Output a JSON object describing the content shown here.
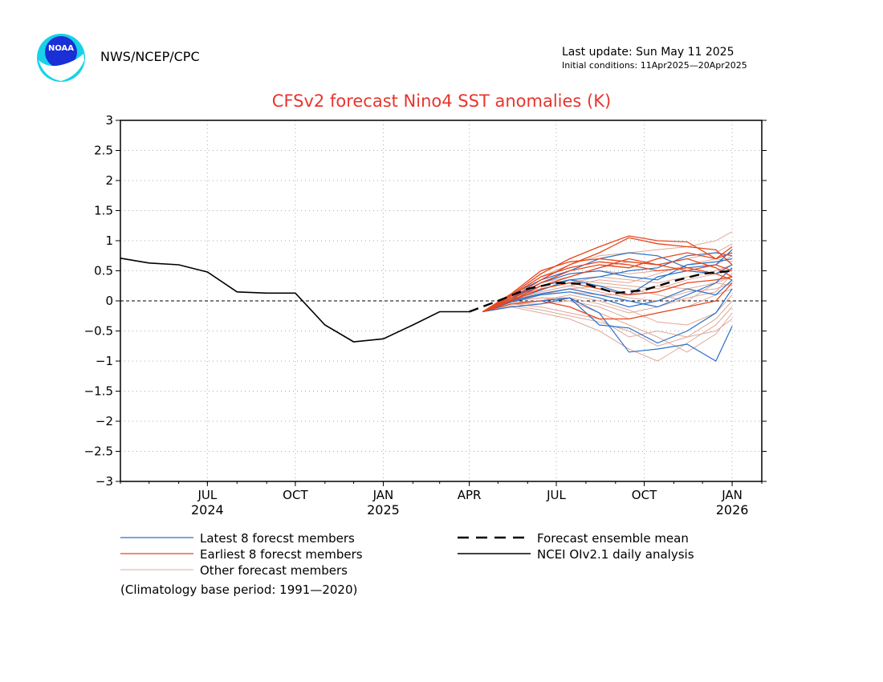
{
  "header": {
    "agency": "NWS/NCEP/CPC",
    "last_update": "Last update: Sun May 11 2025",
    "initial_conditions": "Initial conditions: 11Apr2025—20Apr2025",
    "logo_text": "NOAA"
  },
  "colors": {
    "latest": "#2a6fc9",
    "earliest": "#e8461c",
    "other": "#dfa898",
    "mean": "#000000",
    "analysis": "#000000",
    "title": "#e8352e"
  },
  "chart_data": {
    "type": "line",
    "title": "CFSv2 forecast Nino4 SST anomalies (K)",
    "xlabel": "",
    "ylabel": "",
    "ylim": [
      -3,
      3
    ],
    "yticks": [
      -3,
      -2.5,
      -2,
      -1.5,
      -1,
      -0.5,
      0,
      0.5,
      1,
      1.5,
      2,
      2.5,
      3
    ],
    "ytick_labels": [
      "−3",
      "−2.5",
      "−2",
      "−1.5",
      "−1",
      "−0.5",
      "0",
      "0.5",
      "1",
      "1.5",
      "2",
      "2.5",
      "3"
    ],
    "xlim": [
      "2024-04-01",
      "2026-02-01"
    ],
    "xticks": [
      {
        "date": "2024-07-01",
        "month": "JUL",
        "year": "2024"
      },
      {
        "date": "2024-10-01",
        "month": "OCT",
        "year": ""
      },
      {
        "date": "2025-01-01",
        "month": "JAN",
        "year": "2025"
      },
      {
        "date": "2025-04-01",
        "month": "APR",
        "year": ""
      },
      {
        "date": "2025-07-01",
        "month": "JUL",
        "year": ""
      },
      {
        "date": "2025-10-01",
        "month": "OCT",
        "year": ""
      },
      {
        "date": "2026-01-01",
        "month": "JAN",
        "year": "2026"
      }
    ],
    "grid": true,
    "zero_line": true,
    "legend_placement": "bottom",
    "forecast_dates": [
      "2025-04-15",
      "2025-05-15",
      "2025-06-15",
      "2025-07-15",
      "2025-08-15",
      "2025-09-15",
      "2025-10-15",
      "2025-11-15",
      "2025-12-15",
      "2026-01-01"
    ],
    "series": [
      {
        "name": "NCEI OIv2.1 daily analysis",
        "style": "analysis",
        "x": [
          "2024-04-01",
          "2024-05-01",
          "2024-06-01",
          "2024-07-01",
          "2024-08-01",
          "2024-09-01",
          "2024-10-01",
          "2024-11-01",
          "2024-12-01",
          "2025-01-01",
          "2025-02-01",
          "2025-03-01",
          "2025-04-01"
        ],
        "values": [
          0.71,
          0.63,
          0.6,
          0.48,
          0.15,
          0.13,
          0.13,
          -0.4,
          -0.68,
          -0.63,
          -0.4,
          -0.18,
          -0.18
        ]
      },
      {
        "name": "Forecast ensemble mean",
        "style": "mean",
        "x": [
          "2025-04-01",
          "2025-05-01",
          "2025-06-01",
          "2025-07-01",
          "2025-08-01",
          "2025-09-01",
          "2025-10-01",
          "2025-11-01",
          "2025-12-01",
          "2026-01-01"
        ],
        "values": [
          -0.18,
          0.0,
          0.2,
          0.3,
          0.28,
          0.13,
          0.18,
          0.33,
          0.45,
          0.5
        ]
      },
      {
        "name": "Latest 8 forecst members",
        "style": "latest",
        "values": [
          -0.18,
          0.02,
          0.18,
          0.35,
          0.4,
          0.5,
          0.55,
          0.75,
          0.8,
          0.75
        ]
      },
      {
        "name": "",
        "style": "latest",
        "values": [
          -0.18,
          0.0,
          0.12,
          0.2,
          0.1,
          0.0,
          -0.1,
          0.1,
          0.3,
          0.55
        ]
      },
      {
        "name": "",
        "style": "latest",
        "values": [
          -0.18,
          -0.05,
          0.0,
          0.05,
          -0.2,
          -0.85,
          -0.8,
          -0.72,
          -1.0,
          -0.42
        ]
      },
      {
        "name": "",
        "style": "latest",
        "values": [
          -0.18,
          0.05,
          0.3,
          0.45,
          0.5,
          0.4,
          0.35,
          0.6,
          0.65,
          0.7
        ]
      },
      {
        "name": "",
        "style": "latest",
        "values": [
          -0.18,
          -0.1,
          -0.05,
          0.05,
          -0.4,
          -0.45,
          -0.7,
          -0.5,
          -0.2,
          0.2
        ]
      },
      {
        "name": "",
        "style": "latest",
        "values": [
          -0.18,
          0.05,
          0.25,
          0.35,
          0.25,
          0.1,
          0.4,
          0.5,
          0.45,
          0.6
        ]
      },
      {
        "name": "",
        "style": "latest",
        "values": [
          -0.18,
          0.1,
          0.35,
          0.5,
          0.7,
          0.8,
          0.75,
          0.55,
          0.6,
          0.85
        ]
      },
      {
        "name": "",
        "style": "latest",
        "values": [
          -0.18,
          -0.02,
          0.1,
          0.15,
          0.05,
          -0.1,
          0.0,
          0.2,
          0.1,
          0.35
        ]
      },
      {
        "name": "Earliest 8 forecst members",
        "style": "earliest",
        "values": [
          -0.18,
          0.1,
          0.45,
          0.7,
          0.9,
          1.08,
          1.0,
          0.98,
          0.7,
          0.9
        ]
      },
      {
        "name": "",
        "style": "earliest",
        "values": [
          -0.18,
          0.05,
          0.35,
          0.6,
          0.8,
          1.05,
          0.95,
          0.9,
          0.85,
          0.6
        ]
      },
      {
        "name": "",
        "style": "earliest",
        "values": [
          -0.18,
          0.0,
          0.25,
          0.4,
          0.55,
          0.7,
          0.6,
          0.7,
          0.55,
          0.4
        ]
      },
      {
        "name": "",
        "style": "earliest",
        "values": [
          -0.18,
          -0.05,
          0.0,
          -0.1,
          -0.3,
          -0.3,
          -0.2,
          -0.1,
          0.0,
          0.3
        ]
      },
      {
        "name": "",
        "style": "earliest",
        "values": [
          -0.18,
          0.08,
          0.4,
          0.55,
          0.65,
          0.6,
          0.5,
          0.55,
          0.45,
          0.35
        ]
      },
      {
        "name": "",
        "style": "earliest",
        "values": [
          -0.18,
          0.12,
          0.5,
          0.65,
          0.7,
          0.65,
          0.6,
          0.5,
          0.6,
          0.5
        ]
      },
      {
        "name": "",
        "style": "earliest",
        "values": [
          -0.18,
          0.0,
          0.2,
          0.3,
          0.2,
          0.1,
          0.15,
          0.3,
          0.35,
          0.4
        ]
      },
      {
        "name": "",
        "style": "earliest",
        "values": [
          -0.18,
          0.02,
          0.3,
          0.5,
          0.6,
          0.55,
          0.7,
          0.8,
          0.7,
          0.8
        ]
      },
      {
        "name": "Other forecast members",
        "style": "other",
        "values": [
          -0.18,
          -0.1,
          -0.2,
          -0.3,
          -0.5,
          -0.8,
          -1.0,
          -0.7,
          -0.4,
          -0.1
        ]
      },
      {
        "name": "",
        "style": "other",
        "values": [
          -0.18,
          -0.05,
          -0.1,
          -0.2,
          -0.3,
          -0.6,
          -0.5,
          -0.6,
          -0.3,
          0.0
        ]
      },
      {
        "name": "",
        "style": "other",
        "values": [
          -0.18,
          0.0,
          0.05,
          0.0,
          -0.1,
          -0.3,
          -0.2,
          -0.1,
          0.1,
          0.2
        ]
      },
      {
        "name": "",
        "style": "other",
        "values": [
          -0.18,
          0.02,
          0.1,
          0.2,
          0.25,
          0.2,
          0.1,
          0.0,
          0.3,
          0.4
        ]
      },
      {
        "name": "",
        "style": "other",
        "values": [
          -0.18,
          0.05,
          0.2,
          0.3,
          0.4,
          0.35,
          0.3,
          0.4,
          0.5,
          0.6
        ]
      },
      {
        "name": "",
        "style": "other",
        "values": [
          -0.18,
          0.08,
          0.3,
          0.45,
          0.5,
          0.45,
          0.5,
          0.55,
          0.6,
          0.75
        ]
      },
      {
        "name": "",
        "style": "other",
        "values": [
          -0.18,
          0.1,
          0.4,
          0.6,
          0.75,
          0.8,
          0.85,
          0.9,
          1.0,
          1.15
        ]
      },
      {
        "name": "",
        "style": "other",
        "values": [
          -0.18,
          -0.08,
          -0.15,
          -0.25,
          -0.35,
          -0.5,
          -0.75,
          -0.6,
          -0.5,
          -0.3
        ]
      },
      {
        "name": "",
        "style": "other",
        "values": [
          -0.18,
          0.0,
          0.15,
          0.25,
          0.15,
          0.05,
          0.0,
          0.15,
          0.2,
          0.3
        ]
      },
      {
        "name": "",
        "style": "other",
        "values": [
          -0.18,
          -0.02,
          0.0,
          0.1,
          0.0,
          -0.15,
          -0.35,
          -0.4,
          -0.2,
          0.1
        ]
      },
      {
        "name": "",
        "style": "other",
        "values": [
          -0.18,
          0.04,
          0.25,
          0.35,
          0.3,
          0.25,
          0.2,
          0.35,
          0.45,
          0.5
        ]
      },
      {
        "name": "",
        "style": "other",
        "values": [
          -0.18,
          0.06,
          0.3,
          0.4,
          0.55,
          0.65,
          0.6,
          0.7,
          0.8,
          0.95
        ]
      },
      {
        "name": "",
        "style": "other",
        "values": [
          -0.18,
          -0.05,
          -0.05,
          0.0,
          -0.2,
          -0.4,
          -0.6,
          -0.85,
          -0.55,
          -0.2
        ]
      },
      {
        "name": "",
        "style": "other",
        "values": [
          -0.18,
          0.02,
          0.1,
          0.15,
          0.1,
          0.1,
          0.25,
          0.2,
          0.3,
          0.25
        ]
      },
      {
        "name": "",
        "style": "other",
        "values": [
          -0.18,
          0.0,
          0.05,
          0.05,
          -0.05,
          -0.2,
          -0.1,
          0.05,
          0.15,
          0.45
        ]
      },
      {
        "name": "",
        "style": "other",
        "values": [
          -0.18,
          0.03,
          0.15,
          0.25,
          0.35,
          0.3,
          0.45,
          0.6,
          0.7,
          0.65
        ]
      }
    ]
  },
  "legend": {
    "latest": "Latest 8 forecst members",
    "earliest": "Earliest 8 forecst members",
    "other": "Other forecast members",
    "mean": "Forecast ensemble mean",
    "analysis": "NCEI OIv2.1 daily analysis"
  },
  "footnote": "(Climatology base period: 1991—2020)"
}
